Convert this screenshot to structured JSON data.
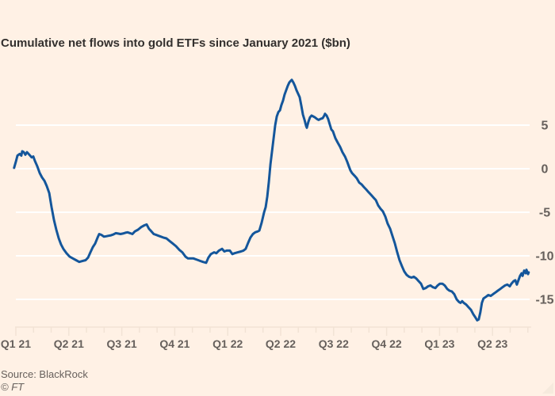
{
  "title": "Cumulative net flows into gold ETFs since January 2021 ($bn)",
  "source": "Source: BlackRock",
  "copyright": "© FT",
  "colors": {
    "background": "#FFF1E5",
    "line": "#14569B",
    "grid": "#FFFFFF",
    "axis": "#F2E3D5",
    "text": "#66605C",
    "title_text": "#33302E",
    "corner": "#F6EADD"
  },
  "chart_data": {
    "type": "line",
    "title": "Cumulative net flows into gold ETFs since January 2021 ($bn)",
    "xlabel": "",
    "ylabel": "$bn",
    "x_unit": "months since January 2021",
    "ylim": [
      -18.5,
      11
    ],
    "grid": "horizontal",
    "legend": "none",
    "yticks": [
      5,
      0,
      -5,
      -10,
      -15
    ],
    "xtick_labels": [
      "Q1 21",
      "Q2 21",
      "Q3 21",
      "Q4 21",
      "Q1 22",
      "Q2 22",
      "Q3 22",
      "Q4 22",
      "Q1 23",
      "Q2 23"
    ],
    "xtick_month_index": [
      0,
      3,
      6,
      9,
      12,
      15,
      18,
      21,
      24,
      27
    ],
    "minor_ticks_every_month": true,
    "series": [
      {
        "name": "Cumulative net flows into gold ETFs ($bn)",
        "points": [
          [
            -0.1,
            0.1
          ],
          [
            0,
            0.8
          ],
          [
            0.09,
            1.5
          ],
          [
            0.22,
            1.7
          ],
          [
            0.31,
            1.5
          ],
          [
            0.36,
            2.0
          ],
          [
            0.45,
            1.9
          ],
          [
            0.54,
            1.6
          ],
          [
            0.63,
            1.9
          ],
          [
            0.72,
            1.7
          ],
          [
            0.81,
            1.5
          ],
          [
            0.9,
            1.3
          ],
          [
            0.99,
            1.4
          ],
          [
            1.08,
            0.9
          ],
          [
            1.21,
            0.3
          ],
          [
            1.35,
            -0.5
          ],
          [
            1.48,
            -1.0
          ],
          [
            1.62,
            -1.4
          ],
          [
            1.75,
            -2.0
          ],
          [
            1.89,
            -2.8
          ],
          [
            2.02,
            -4.4
          ],
          [
            2.16,
            -5.9
          ],
          [
            2.29,
            -7.0
          ],
          [
            2.43,
            -8.0
          ],
          [
            2.56,
            -8.7
          ],
          [
            2.69,
            -9.2
          ],
          [
            2.87,
            -9.7
          ],
          [
            3.05,
            -10.1
          ],
          [
            3.23,
            -10.3
          ],
          [
            3.41,
            -10.5
          ],
          [
            3.59,
            -10.7
          ],
          [
            3.77,
            -10.6
          ],
          [
            3.95,
            -10.5
          ],
          [
            4.09,
            -10.2
          ],
          [
            4.22,
            -9.6
          ],
          [
            4.36,
            -9.0
          ],
          [
            4.49,
            -8.6
          ],
          [
            4.63,
            -7.9
          ],
          [
            4.72,
            -7.5
          ],
          [
            4.85,
            -7.6
          ],
          [
            4.99,
            -7.8
          ],
          [
            5.12,
            -7.75
          ],
          [
            5.25,
            -7.7
          ],
          [
            5.39,
            -7.65
          ],
          [
            5.52,
            -7.55
          ],
          [
            5.66,
            -7.4
          ],
          [
            5.79,
            -7.45
          ],
          [
            5.93,
            -7.5
          ],
          [
            6.06,
            -7.45
          ],
          [
            6.2,
            -7.35
          ],
          [
            6.33,
            -7.3
          ],
          [
            6.47,
            -7.4
          ],
          [
            6.6,
            -7.5
          ],
          [
            6.74,
            -7.2
          ],
          [
            6.92,
            -7.0
          ],
          [
            7.1,
            -6.7
          ],
          [
            7.28,
            -6.5
          ],
          [
            7.41,
            -6.4
          ],
          [
            7.54,
            -6.9
          ],
          [
            7.68,
            -7.2
          ],
          [
            7.81,
            -7.5
          ],
          [
            7.95,
            -7.6
          ],
          [
            8.08,
            -7.7
          ],
          [
            8.22,
            -7.8
          ],
          [
            8.35,
            -7.9
          ],
          [
            8.53,
            -8.0
          ],
          [
            8.71,
            -8.3
          ],
          [
            8.89,
            -8.6
          ],
          [
            9.07,
            -8.9
          ],
          [
            9.25,
            -9.3
          ],
          [
            9.43,
            -9.6
          ],
          [
            9.61,
            -10.1
          ],
          [
            9.75,
            -10.3
          ],
          [
            9.88,
            -10.3
          ],
          [
            10.06,
            -10.3
          ],
          [
            10.19,
            -10.4
          ],
          [
            10.33,
            -10.5
          ],
          [
            10.46,
            -10.6
          ],
          [
            10.6,
            -10.7
          ],
          [
            10.78,
            -10.8
          ],
          [
            10.91,
            -10.2
          ],
          [
            11.05,
            -9.8
          ],
          [
            11.23,
            -9.6
          ],
          [
            11.36,
            -9.7
          ],
          [
            11.5,
            -9.4
          ],
          [
            11.68,
            -9.2
          ],
          [
            11.81,
            -9.5
          ],
          [
            11.94,
            -9.4
          ],
          [
            12.12,
            -9.4
          ],
          [
            12.26,
            -9.8
          ],
          [
            12.39,
            -9.7
          ],
          [
            12.57,
            -9.6
          ],
          [
            12.75,
            -9.5
          ],
          [
            12.89,
            -9.4
          ],
          [
            13.02,
            -9.2
          ],
          [
            13.16,
            -8.5
          ],
          [
            13.29,
            -7.9
          ],
          [
            13.43,
            -7.5
          ],
          [
            13.56,
            -7.3
          ],
          [
            13.7,
            -7.2
          ],
          [
            13.79,
            -7.1
          ],
          [
            13.92,
            -6.2
          ],
          [
            14.06,
            -5.0
          ],
          [
            14.15,
            -4.4
          ],
          [
            14.24,
            -3.2
          ],
          [
            14.33,
            -1.5
          ],
          [
            14.42,
            0.5
          ],
          [
            14.51,
            2.0
          ],
          [
            14.6,
            3.5
          ],
          [
            14.69,
            5.0
          ],
          [
            14.78,
            6.0
          ],
          [
            14.87,
            6.5
          ],
          [
            14.96,
            6.7
          ],
          [
            15.04,
            7.3
          ],
          [
            15.13,
            7.8
          ],
          [
            15.22,
            8.5
          ],
          [
            15.31,
            9.0
          ],
          [
            15.4,
            9.5
          ],
          [
            15.49,
            9.9
          ],
          [
            15.58,
            10.1
          ],
          [
            15.63,
            10.2
          ],
          [
            15.72,
            9.9
          ],
          [
            15.81,
            9.5
          ],
          [
            15.9,
            9.0
          ],
          [
            15.99,
            8.6
          ],
          [
            16.08,
            8.2
          ],
          [
            16.17,
            7.2
          ],
          [
            16.26,
            6.2
          ],
          [
            16.35,
            5.6
          ],
          [
            16.44,
            4.9
          ],
          [
            16.48,
            4.7
          ],
          [
            16.57,
            5.4
          ],
          [
            16.66,
            5.9
          ],
          [
            16.75,
            6.1
          ],
          [
            16.84,
            6.0
          ],
          [
            16.93,
            5.9
          ],
          [
            17.06,
            5.7
          ],
          [
            17.15,
            5.6
          ],
          [
            17.24,
            5.7
          ],
          [
            17.38,
            5.8
          ],
          [
            17.47,
            6.1
          ],
          [
            17.51,
            6.3
          ],
          [
            17.6,
            6.1
          ],
          [
            17.69,
            5.7
          ],
          [
            17.78,
            5.1
          ],
          [
            17.87,
            4.5
          ],
          [
            17.96,
            4.3
          ],
          [
            18.1,
            3.5
          ],
          [
            18.23,
            3.0
          ],
          [
            18.37,
            2.5
          ],
          [
            18.5,
            1.9
          ],
          [
            18.64,
            1.4
          ],
          [
            18.77,
            0.8
          ],
          [
            18.86,
            0.3
          ],
          [
            18.95,
            -0.2
          ],
          [
            19.04,
            -0.5
          ],
          [
            19.18,
            -0.8
          ],
          [
            19.31,
            -1.1
          ],
          [
            19.45,
            -1.6
          ],
          [
            19.58,
            -1.8
          ],
          [
            19.71,
            -2.1
          ],
          [
            19.85,
            -2.4
          ],
          [
            19.98,
            -2.7
          ],
          [
            20.12,
            -3.0
          ],
          [
            20.25,
            -3.3
          ],
          [
            20.39,
            -3.6
          ],
          [
            20.52,
            -4.2
          ],
          [
            20.66,
            -4.6
          ],
          [
            20.79,
            -4.9
          ],
          [
            20.93,
            -5.5
          ],
          [
            21.06,
            -6.3
          ],
          [
            21.2,
            -6.9
          ],
          [
            21.33,
            -7.7
          ],
          [
            21.47,
            -8.6
          ],
          [
            21.6,
            -9.6
          ],
          [
            21.73,
            -10.5
          ],
          [
            21.87,
            -11.2
          ],
          [
            22.0,
            -11.8
          ],
          [
            22.14,
            -12.2
          ],
          [
            22.27,
            -12.4
          ],
          [
            22.41,
            -12.5
          ],
          [
            22.54,
            -12.4
          ],
          [
            22.68,
            -12.6
          ],
          [
            22.81,
            -12.9
          ],
          [
            22.95,
            -13.2
          ],
          [
            23.08,
            -13.8
          ],
          [
            23.22,
            -13.7
          ],
          [
            23.35,
            -13.5
          ],
          [
            23.49,
            -13.4
          ],
          [
            23.62,
            -13.6
          ],
          [
            23.76,
            -13.7
          ],
          [
            23.89,
            -13.4
          ],
          [
            24.02,
            -13.2
          ],
          [
            24.16,
            -13.2
          ],
          [
            24.29,
            -13.4
          ],
          [
            24.43,
            -13.8
          ],
          [
            24.56,
            -14.0
          ],
          [
            24.7,
            -14.1
          ],
          [
            24.83,
            -14.4
          ],
          [
            24.97,
            -15.0
          ],
          [
            25.1,
            -15.3
          ],
          [
            25.19,
            -15.4
          ],
          [
            25.28,
            -15.2
          ],
          [
            25.37,
            -15.4
          ],
          [
            25.51,
            -15.6
          ],
          [
            25.64,
            -15.9
          ],
          [
            25.78,
            -16.2
          ],
          [
            25.91,
            -16.7
          ],
          [
            26.04,
            -17.1
          ],
          [
            26.13,
            -17.4
          ],
          [
            26.22,
            -17.3
          ],
          [
            26.31,
            -16.5
          ],
          [
            26.4,
            -15.4
          ],
          [
            26.49,
            -14.9
          ],
          [
            26.63,
            -14.7
          ],
          [
            26.76,
            -14.5
          ],
          [
            26.9,
            -14.6
          ],
          [
            27.03,
            -14.4
          ],
          [
            27.17,
            -14.2
          ],
          [
            27.3,
            -14.0
          ],
          [
            27.44,
            -13.8
          ],
          [
            27.57,
            -13.6
          ],
          [
            27.71,
            -13.4
          ],
          [
            27.84,
            -13.3
          ],
          [
            27.98,
            -13.5
          ],
          [
            28.07,
            -13.2
          ],
          [
            28.2,
            -12.9
          ],
          [
            28.29,
            -12.8
          ],
          [
            28.38,
            -13.3
          ],
          [
            28.47,
            -12.8
          ],
          [
            28.56,
            -12.3
          ],
          [
            28.65,
            -12.0
          ],
          [
            28.7,
            -12.3
          ],
          [
            28.79,
            -11.7
          ],
          [
            28.88,
            -12.0
          ],
          [
            28.92,
            -11.6
          ],
          [
            29.01,
            -12.1
          ],
          [
            29.05,
            -11.9
          ]
        ]
      }
    ]
  }
}
